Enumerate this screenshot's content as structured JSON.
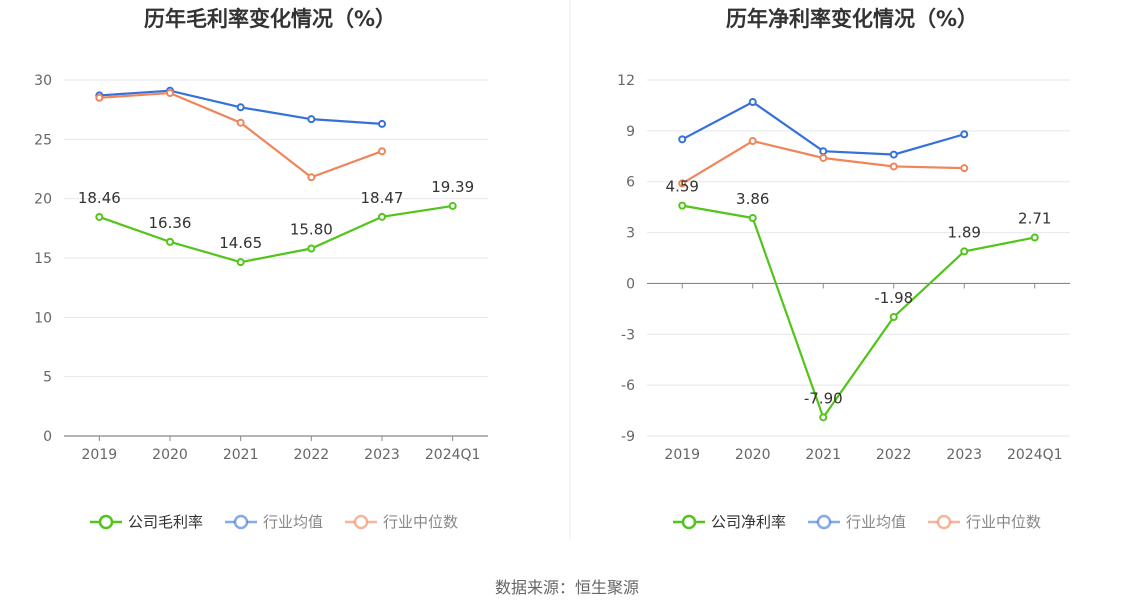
{
  "source_label": "数据来源：恒生聚源",
  "colors": {
    "company": "#52c41a",
    "industry_avg": "#3670d9",
    "industry_median": "#f0855a"
  },
  "chart_data": [
    {
      "type": "line",
      "title": "历年毛利率变化情况（%）",
      "categories": [
        "2019",
        "2020",
        "2021",
        "2022",
        "2023",
        "2024Q1"
      ],
      "ylim": [
        0,
        30
      ],
      "yticks": [
        0,
        5,
        10,
        15,
        20,
        25,
        30
      ],
      "grid": true,
      "legend": "bottom",
      "series": [
        {
          "name": "公司毛利率",
          "key": "company",
          "values": [
            18.46,
            16.36,
            14.65,
            15.8,
            18.47,
            19.39
          ],
          "labels": [
            "18.46",
            "16.36",
            "14.65",
            "15.80",
            "18.47",
            "19.39"
          ]
        },
        {
          "name": "行业均值",
          "key": "industry_avg",
          "values": [
            28.7,
            29.1,
            27.7,
            26.7,
            26.3,
            null
          ]
        },
        {
          "name": "行业中位数",
          "key": "industry_median",
          "values": [
            28.5,
            28.9,
            26.4,
            21.8,
            24.0,
            null
          ]
        }
      ]
    },
    {
      "type": "line",
      "title": "历年净利率变化情况（%）",
      "categories": [
        "2019",
        "2020",
        "2021",
        "2022",
        "2023",
        "2024Q1"
      ],
      "ylim": [
        -9,
        12
      ],
      "yticks": [
        -9,
        -6,
        -3,
        0,
        3,
        6,
        9,
        12
      ],
      "grid": true,
      "legend": "bottom",
      "series": [
        {
          "name": "公司净利率",
          "key": "company",
          "values": [
            4.59,
            3.86,
            -7.9,
            -1.98,
            1.89,
            2.71
          ],
          "labels": [
            "4.59",
            "3.86",
            "-7.90",
            "-1.98",
            "1.89",
            "2.71"
          ]
        },
        {
          "name": "行业均值",
          "key": "industry_avg",
          "values": [
            8.5,
            10.7,
            7.8,
            7.6,
            8.8,
            null
          ]
        },
        {
          "name": "行业中位数",
          "key": "industry_median",
          "values": [
            5.9,
            8.4,
            7.4,
            6.9,
            6.8,
            null
          ]
        }
      ]
    }
  ]
}
